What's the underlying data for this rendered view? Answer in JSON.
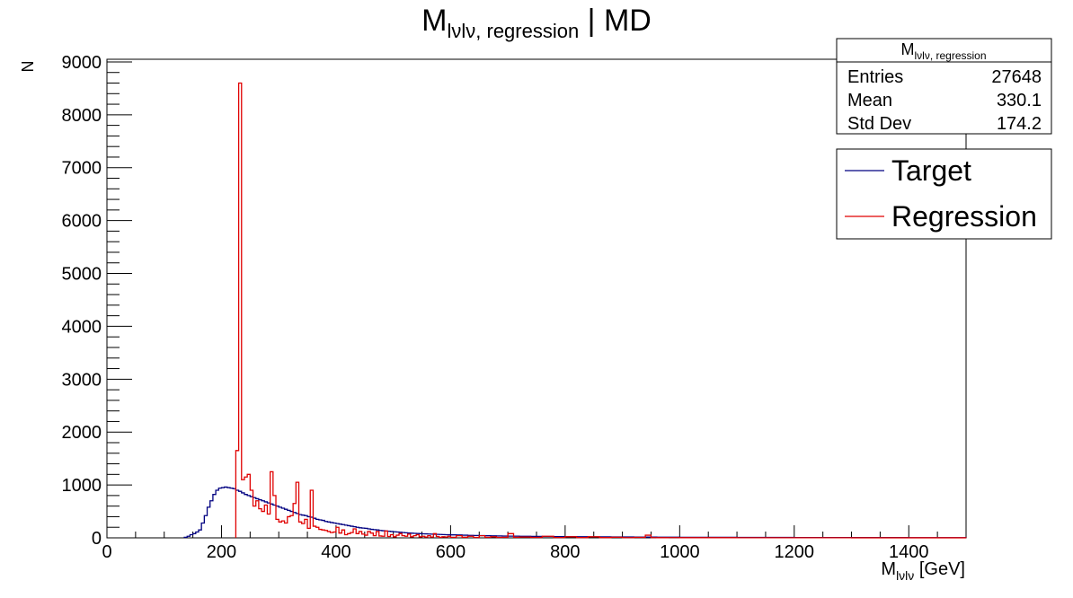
{
  "chart_data": {
    "type": "histogram",
    "title_main": "M",
    "title_sub": "lνlν, regression",
    "title_suffix": " | MD",
    "xlabel_main": "M",
    "xlabel_sub": "lνlν",
    "xlabel_suffix": " [GeV]",
    "ylabel": "N",
    "xlim": [
      0,
      1500
    ],
    "ylim": [
      0,
      9050
    ],
    "bin_width": 5,
    "x_ticks": [
      0,
      200,
      400,
      600,
      800,
      1000,
      1200,
      1400
    ],
    "y_ticks": [
      0,
      1000,
      2000,
      3000,
      4000,
      5000,
      6000,
      7000,
      8000,
      9000
    ],
    "x_tick_labels": [
      "0",
      "200",
      "400",
      "600",
      "800",
      "1000",
      "1200",
      "1400"
    ],
    "y_tick_labels": [
      "0",
      "1000",
      "2000",
      "3000",
      "4000",
      "5000",
      "6000",
      "7000",
      "8000",
      "9000"
    ],
    "stats": {
      "title_main": "M",
      "title_sub": "lνlν, regression",
      "rows": [
        {
          "label": "Entries",
          "value": "27648"
        },
        {
          "label": "Mean",
          "value": "330.1"
        },
        {
          "label": "Std Dev",
          "value": "174.2"
        }
      ]
    },
    "legend": {
      "placement": "top-right"
    },
    "series": [
      {
        "name": "Target",
        "color": "#000080",
        "points": [
          [
            135,
            10
          ],
          [
            140,
            30
          ],
          [
            145,
            60
          ],
          [
            150,
            80
          ],
          [
            155,
            110
          ],
          [
            160,
            150
          ],
          [
            165,
            280
          ],
          [
            170,
            420
          ],
          [
            175,
            580
          ],
          [
            180,
            700
          ],
          [
            185,
            820
          ],
          [
            190,
            900
          ],
          [
            195,
            940
          ],
          [
            200,
            950
          ],
          [
            205,
            960
          ],
          [
            210,
            950
          ],
          [
            215,
            940
          ],
          [
            220,
            930
          ],
          [
            225,
            900
          ],
          [
            230,
            880
          ],
          [
            235,
            850
          ],
          [
            240,
            820
          ],
          [
            245,
            800
          ],
          [
            250,
            780
          ],
          [
            255,
            760
          ],
          [
            260,
            740
          ],
          [
            265,
            720
          ],
          [
            270,
            700
          ],
          [
            275,
            680
          ],
          [
            280,
            660
          ],
          [
            285,
            640
          ],
          [
            290,
            620
          ],
          [
            295,
            600
          ],
          [
            300,
            580
          ],
          [
            305,
            560
          ],
          [
            310,
            540
          ],
          [
            315,
            520
          ],
          [
            320,
            500
          ],
          [
            325,
            480
          ],
          [
            330,
            460
          ],
          [
            335,
            440
          ],
          [
            340,
            430
          ],
          [
            345,
            420
          ],
          [
            350,
            400
          ],
          [
            355,
            390
          ],
          [
            360,
            370
          ],
          [
            365,
            350
          ],
          [
            370,
            340
          ],
          [
            375,
            330
          ],
          [
            380,
            310
          ],
          [
            385,
            300
          ],
          [
            390,
            290
          ],
          [
            395,
            280
          ],
          [
            400,
            270
          ],
          [
            405,
            260
          ],
          [
            410,
            250
          ],
          [
            415,
            240
          ],
          [
            420,
            230
          ],
          [
            425,
            220
          ],
          [
            430,
            210
          ],
          [
            435,
            200
          ],
          [
            440,
            190
          ],
          [
            445,
            185
          ],
          [
            450,
            180
          ],
          [
            455,
            170
          ],
          [
            460,
            160
          ],
          [
            465,
            155
          ],
          [
            470,
            150
          ],
          [
            475,
            140
          ],
          [
            480,
            135
          ],
          [
            485,
            130
          ],
          [
            490,
            125
          ],
          [
            495,
            120
          ],
          [
            500,
            115
          ],
          [
            505,
            110
          ],
          [
            510,
            105
          ],
          [
            515,
            100
          ],
          [
            520,
            95
          ],
          [
            525,
            90
          ],
          [
            530,
            88
          ],
          [
            535,
            85
          ],
          [
            540,
            82
          ],
          [
            545,
            80
          ],
          [
            550,
            77
          ],
          [
            555,
            75
          ],
          [
            560,
            72
          ],
          [
            565,
            70
          ],
          [
            570,
            68
          ],
          [
            575,
            66
          ],
          [
            580,
            64
          ],
          [
            585,
            62
          ],
          [
            590,
            60
          ],
          [
            595,
            58
          ],
          [
            600,
            56
          ],
          [
            610,
            54
          ],
          [
            620,
            50
          ],
          [
            630,
            47
          ],
          [
            640,
            44
          ],
          [
            650,
            42
          ],
          [
            660,
            40
          ],
          [
            670,
            38
          ],
          [
            680,
            36
          ],
          [
            690,
            34
          ],
          [
            700,
            32
          ],
          [
            720,
            30
          ],
          [
            740,
            28
          ],
          [
            760,
            26
          ],
          [
            780,
            24
          ],
          [
            800,
            22
          ],
          [
            820,
            20
          ],
          [
            840,
            19
          ],
          [
            860,
            18
          ],
          [
            880,
            17
          ],
          [
            900,
            16
          ],
          [
            920,
            15
          ],
          [
            940,
            14
          ],
          [
            960,
            13
          ],
          [
            980,
            12
          ],
          [
            1000,
            11
          ],
          [
            1050,
            10
          ],
          [
            1100,
            9
          ],
          [
            1150,
            8
          ],
          [
            1200,
            7
          ],
          [
            1250,
            6
          ],
          [
            1300,
            5
          ],
          [
            1350,
            5
          ],
          [
            1400,
            4
          ],
          [
            1450,
            4
          ],
          [
            1495,
            3
          ]
        ]
      },
      {
        "name": "Regression",
        "color": "#e00000",
        "points": [
          [
            225,
            1650
          ],
          [
            230,
            8600
          ],
          [
            235,
            1100
          ],
          [
            240,
            1150
          ],
          [
            245,
            1200
          ],
          [
            250,
            900
          ],
          [
            255,
            600
          ],
          [
            260,
            700
          ],
          [
            265,
            550
          ],
          [
            270,
            500
          ],
          [
            275,
            620
          ],
          [
            280,
            450
          ],
          [
            285,
            1250
          ],
          [
            290,
            800
          ],
          [
            295,
            350
          ],
          [
            300,
            300
          ],
          [
            305,
            320
          ],
          [
            310,
            280
          ],
          [
            315,
            400
          ],
          [
            320,
            420
          ],
          [
            325,
            650
          ],
          [
            330,
            1050
          ],
          [
            335,
            300
          ],
          [
            340,
            270
          ],
          [
            345,
            350
          ],
          [
            350,
            180
          ],
          [
            355,
            900
          ],
          [
            360,
            220
          ],
          [
            365,
            200
          ],
          [
            370,
            160
          ],
          [
            375,
            150
          ],
          [
            380,
            140
          ],
          [
            385,
            120
          ],
          [
            390,
            100
          ],
          [
            395,
            110
          ],
          [
            400,
            200
          ],
          [
            405,
            90
          ],
          [
            410,
            150
          ],
          [
            415,
            60
          ],
          [
            420,
            80
          ],
          [
            425,
            100
          ],
          [
            430,
            170
          ],
          [
            435,
            80
          ],
          [
            440,
            120
          ],
          [
            445,
            70
          ],
          [
            450,
            50
          ],
          [
            455,
            120
          ],
          [
            460,
            90
          ],
          [
            465,
            40
          ],
          [
            470,
            120
          ],
          [
            475,
            35
          ],
          [
            480,
            30
          ],
          [
            485,
            130
          ],
          [
            490,
            25
          ],
          [
            495,
            60
          ],
          [
            500,
            20
          ],
          [
            505,
            50
          ],
          [
            510,
            80
          ],
          [
            515,
            40
          ],
          [
            520,
            30
          ],
          [
            525,
            70
          ],
          [
            530,
            20
          ],
          [
            535,
            40
          ],
          [
            540,
            60
          ],
          [
            545,
            20
          ],
          [
            550,
            30
          ],
          [
            555,
            15
          ],
          [
            560,
            40
          ],
          [
            565,
            15
          ],
          [
            570,
            80
          ],
          [
            575,
            25
          ],
          [
            580,
            10
          ],
          [
            585,
            20
          ],
          [
            590,
            15
          ],
          [
            595,
            30
          ],
          [
            600,
            10
          ],
          [
            610,
            40
          ],
          [
            620,
            12
          ],
          [
            630,
            30
          ],
          [
            640,
            8
          ],
          [
            650,
            40
          ],
          [
            660,
            10
          ],
          [
            670,
            20
          ],
          [
            680,
            8
          ],
          [
            690,
            10
          ],
          [
            700,
            80
          ],
          [
            710,
            10
          ],
          [
            720,
            15
          ],
          [
            740,
            8
          ],
          [
            760,
            30
          ],
          [
            780,
            6
          ],
          [
            800,
            20
          ],
          [
            820,
            5
          ],
          [
            840,
            20
          ],
          [
            860,
            5
          ],
          [
            880,
            10
          ],
          [
            900,
            4
          ],
          [
            920,
            8
          ],
          [
            940,
            50
          ],
          [
            950,
            4
          ],
          [
            960,
            3
          ],
          [
            980,
            4
          ],
          [
            1000,
            3
          ],
          [
            1100,
            2
          ],
          [
            1200,
            2
          ],
          [
            1300,
            1
          ],
          [
            1400,
            1
          ],
          [
            1495,
            1
          ]
        ]
      }
    ]
  }
}
